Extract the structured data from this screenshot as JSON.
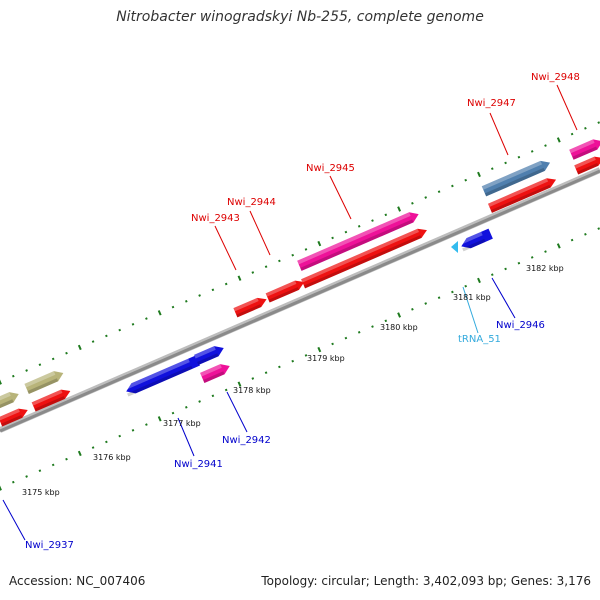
{
  "title": "Nitrobacter winogradskyi Nb-255, complete genome",
  "footer": {
    "accession": "Accession: NC_007406",
    "summary": "Topology: circular; Length: 3,402,093 bp; Genes: 3,176"
  },
  "colors": {
    "backbone": "#8a8a8a",
    "scale_dots": "#1e7a1e",
    "cds": "#ee1111",
    "forward_gene": "#ee1199",
    "reverse_gene": "#1111dd",
    "blue_gray_gene": "#4f7fae",
    "tan_gene": "#b8b47a",
    "trna": "#33bbee",
    "forward_label": "#dd0000",
    "reverse_label": "#0000cc",
    "trna_label": "#33aadd"
  },
  "scale_ticks": [
    "3175 kbp",
    "3176 kbp",
    "3177 kbp",
    "3178 kbp",
    "3179 kbp",
    "3180 kbp",
    "3181 kbp",
    "3182 kbp"
  ],
  "gene_labels": [
    {
      "id": "Nwi_2948",
      "strand": "forward"
    },
    {
      "id": "Nwi_2947",
      "strand": "forward"
    },
    {
      "id": "Nwi_2945",
      "strand": "forward"
    },
    {
      "id": "Nwi_2944",
      "strand": "forward"
    },
    {
      "id": "Nwi_2943",
      "strand": "forward"
    },
    {
      "id": "Nwi_2946",
      "strand": "reverse"
    },
    {
      "id": "tRNA_51",
      "strand": "trna"
    },
    {
      "id": "Nwi_2942",
      "strand": "reverse"
    },
    {
      "id": "Nwi_2941",
      "strand": "reverse"
    },
    {
      "id": "Nwi_2937",
      "strand": "reverse"
    }
  ]
}
